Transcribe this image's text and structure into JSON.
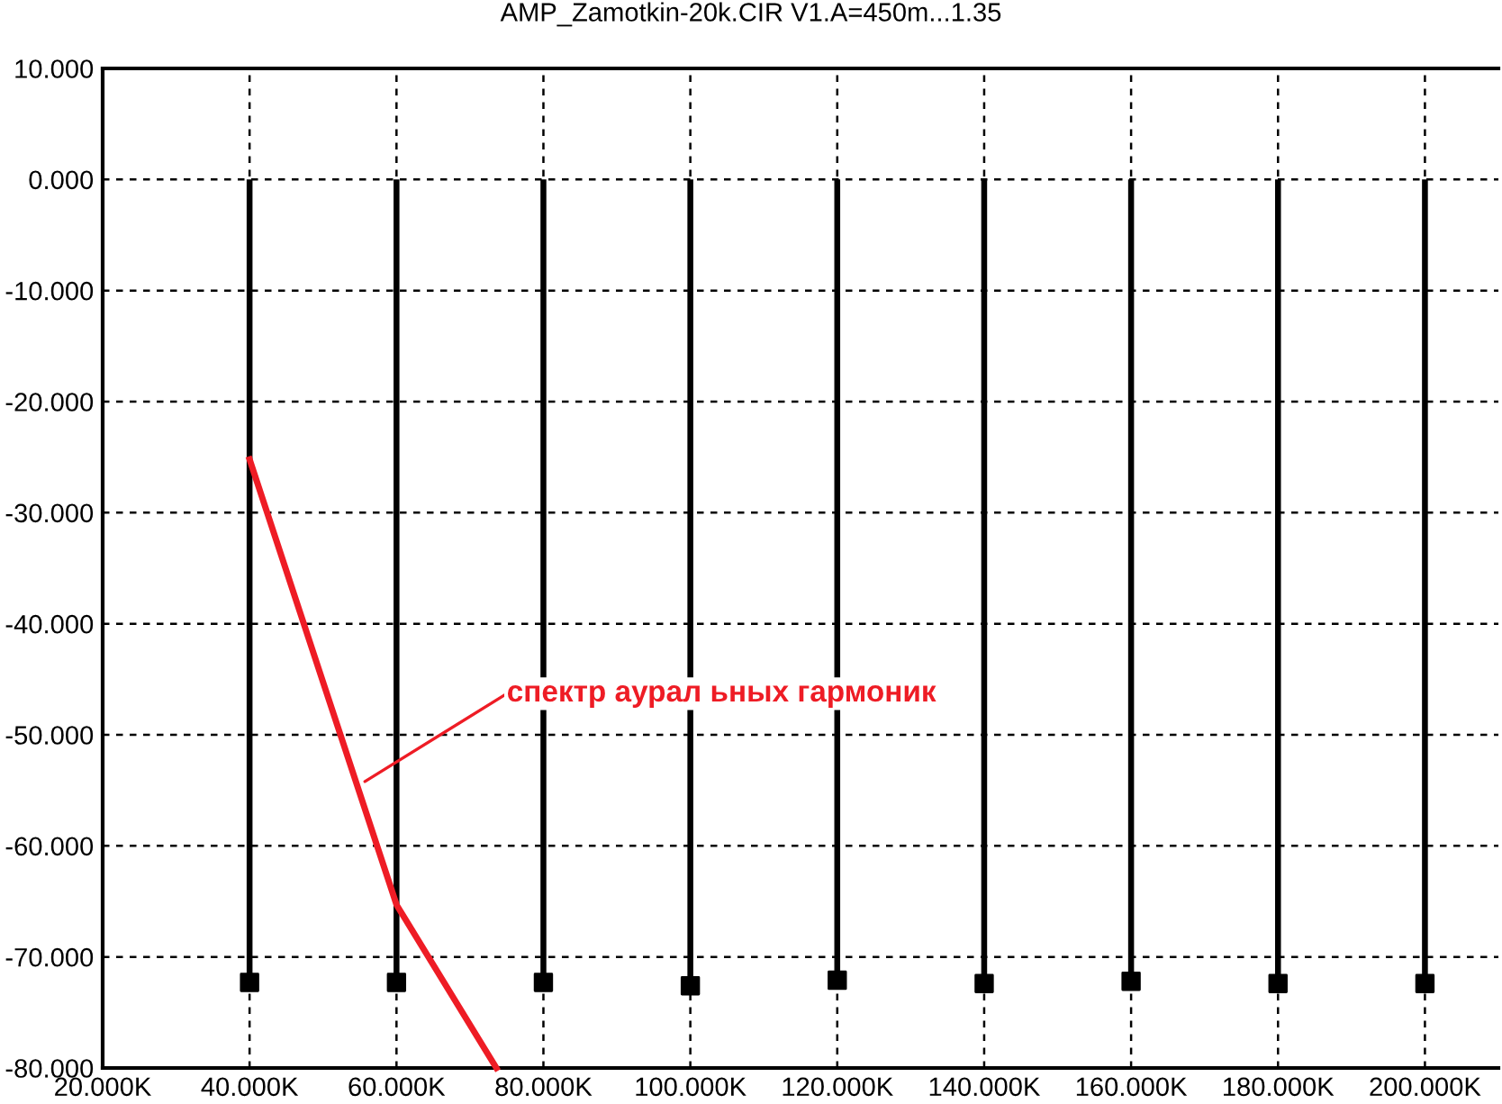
{
  "chart_data": {
    "type": "bar",
    "title": "AMP_Zamotkin-20k.CIR V1.A=450m...1.35",
    "series": [
      {
        "color": "#000000",
        "x": [
          40,
          60,
          80,
          100,
          120,
          140,
          160,
          180,
          200
        ],
        "base": [
          -72.3,
          -72.3,
          -72.3,
          -72.6,
          -72.1,
          -72.4,
          -72.2,
          -72.4,
          -72.4
        ],
        "values": [
          72.3,
          72.3,
          72.3,
          72.6,
          72.1,
          72.4,
          72.2,
          72.4,
          72.4
        ]
      },
      {
        "type": "scatter",
        "color": "#000000",
        "marker": "square",
        "x": [
          40,
          60,
          80,
          100,
          120,
          140,
          160,
          180,
          200
        ],
        "values": [
          -72.3,
          -72.3,
          -72.3,
          -72.6,
          -72.1,
          -72.4,
          -72.2,
          -72.4,
          -72.4
        ]
      },
      {
        "type": "line",
        "color": "#ee1c25",
        "x": [
          40,
          60,
          73.6
        ],
        "values": [
          -25.2,
          -65.3,
          -80
        ]
      }
    ],
    "annotations": [
      {
        "text": "спектр аурал ьных гармоник",
        "x": 55.7,
        "y": -54.2
      }
    ],
    "xlim": [
      20,
      210
    ],
    "xticks": [
      {
        "value": 20,
        "label": "20.000K"
      },
      {
        "value": 40,
        "label": "40.000K"
      },
      {
        "value": 60,
        "label": "60.000K"
      },
      {
        "value": 80,
        "label": "80.000K"
      },
      {
        "value": 100,
        "label": "100.000K"
      },
      {
        "value": 120,
        "label": "120.000K"
      },
      {
        "value": 140,
        "label": "140.000K"
      },
      {
        "value": 160,
        "label": "160.000K"
      },
      {
        "value": 180,
        "label": "180.000K"
      },
      {
        "value": 200,
        "label": "200.000K"
      }
    ],
    "ylim": [
      -80,
      10
    ],
    "yticks": [
      {
        "value": -80,
        "label": "-80.000"
      },
      {
        "value": -70,
        "label": "-70.000"
      },
      {
        "value": -60,
        "label": "-60.000"
      },
      {
        "value": -50,
        "label": "-50.000"
      },
      {
        "value": -40,
        "label": "-40.000"
      },
      {
        "value": -30,
        "label": "-30.000"
      },
      {
        "value": -20,
        "label": "-20.000"
      },
      {
        "value": -10,
        "label": "-10.000"
      },
      {
        "value": 0,
        "label": "0.000"
      },
      {
        "value": 10,
        "label": "10.000"
      }
    ],
    "grid": true
  }
}
